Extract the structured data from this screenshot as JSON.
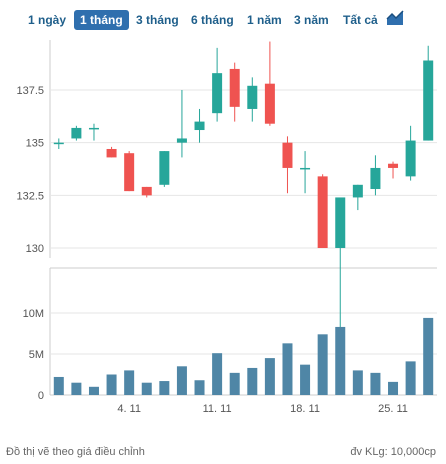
{
  "tabs": [
    {
      "label": "1 ngày",
      "active": false
    },
    {
      "label": "1 tháng",
      "active": true
    },
    {
      "label": "3 tháng",
      "active": false
    },
    {
      "label": "6 tháng",
      "active": false
    },
    {
      "label": "1 năm",
      "active": false
    },
    {
      "label": "3 năm",
      "active": false
    },
    {
      "label": "Tất cả",
      "active": false
    }
  ],
  "icons": {
    "chart_type": "area-chart-icon"
  },
  "colors": {
    "up": "#26a69a",
    "down": "#ef5350",
    "volume": "#4f86a6",
    "grid": "#e6e6e6",
    "axis_text": "#555555"
  },
  "chart_data": [
    {
      "type": "candlestick",
      "price_ticks": [
        "137.5",
        "135",
        "132.5",
        "130"
      ],
      "price_tick_values": [
        137.5,
        135,
        132.5,
        130
      ],
      "x_ticks": [
        "4. 11",
        "11. 11",
        "18. 11",
        "25. 11"
      ],
      "x_tick_index": [
        4,
        9,
        14,
        19
      ],
      "ohlc": [
        {
          "o": 135.0,
          "h": 135.2,
          "l": 134.7,
          "c": 135.0
        },
        {
          "o": 135.2,
          "h": 135.8,
          "l": 135.1,
          "c": 135.7
        },
        {
          "o": 135.7,
          "h": 135.9,
          "l": 135.1,
          "c": 135.7
        },
        {
          "o": 134.7,
          "h": 134.8,
          "l": 134.3,
          "c": 134.3
        },
        {
          "o": 134.5,
          "h": 134.6,
          "l": 132.7,
          "c": 132.7
        },
        {
          "o": 132.9,
          "h": 132.9,
          "l": 132.4,
          "c": 132.5
        },
        {
          "o": 133.0,
          "h": 134.6,
          "l": 132.9,
          "c": 134.6
        },
        {
          "o": 135.0,
          "h": 137.5,
          "l": 134.3,
          "c": 135.2
        },
        {
          "o": 135.6,
          "h": 136.6,
          "l": 135.0,
          "c": 136.0
        },
        {
          "o": 136.4,
          "h": 139.5,
          "l": 136.0,
          "c": 138.3
        },
        {
          "o": 138.5,
          "h": 138.8,
          "l": 136.0,
          "c": 136.7
        },
        {
          "o": 136.6,
          "h": 138.1,
          "l": 136.0,
          "c": 137.7
        },
        {
          "o": 137.8,
          "h": 139.8,
          "l": 135.8,
          "c": 135.9
        },
        {
          "o": 135.0,
          "h": 135.3,
          "l": 132.6,
          "c": 133.8
        },
        {
          "o": 133.8,
          "h": 134.6,
          "l": 132.6,
          "c": 133.8
        },
        {
          "o": 133.4,
          "h": 133.5,
          "l": 130.0,
          "c": 130.0
        },
        {
          "o": 130.0,
          "h": 132.4,
          "l": 125.5,
          "c": 132.4
        },
        {
          "o": 132.4,
          "h": 133.0,
          "l": 131.8,
          "c": 133.0
        },
        {
          "o": 132.8,
          "h": 134.4,
          "l": 132.5,
          "c": 133.8
        },
        {
          "o": 134.0,
          "h": 134.1,
          "l": 133.3,
          "c": 133.8
        },
        {
          "o": 133.4,
          "h": 135.8,
          "l": 133.2,
          "c": 135.1
        },
        {
          "o": 135.1,
          "h": 139.6,
          "l": 135.1,
          "c": 138.9
        }
      ]
    },
    {
      "type": "bar",
      "name": "volume",
      "y_ticks": [
        "10M",
        "5M",
        "0"
      ],
      "y_tick_values": [
        10,
        5,
        0
      ],
      "values": [
        2.2,
        1.5,
        1.0,
        2.5,
        3.0,
        1.5,
        1.7,
        3.5,
        1.8,
        5.1,
        2.7,
        3.3,
        4.5,
        6.3,
        3.7,
        7.4,
        8.3,
        3.0,
        2.7,
        1.6,
        4.1,
        9.4
      ]
    }
  ],
  "footer": {
    "left": "Đồ thị vẽ theo giá điều chỉnh",
    "right": "đv KLg: 10,000cp"
  }
}
